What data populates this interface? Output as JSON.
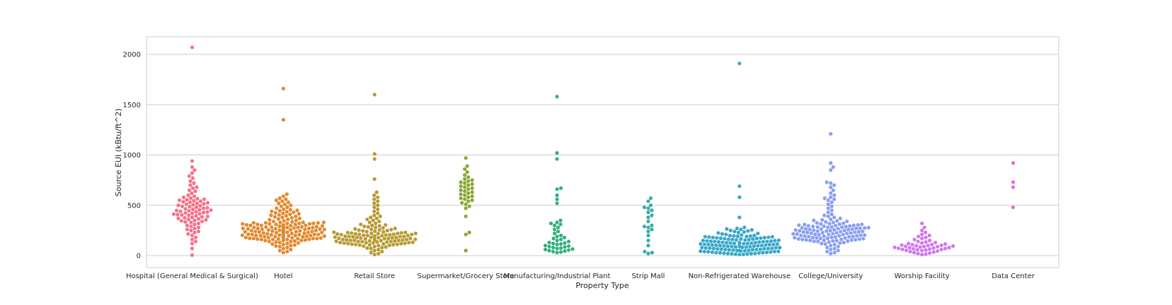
{
  "chart_data": {
    "type": "scatter",
    "subtype": "swarm",
    "title": "",
    "xlabel": "Property Type",
    "ylabel": "Source EUI (kBtu/ft^2)",
    "ylim": [
      -120,
      2180
    ],
    "yticks": [
      0,
      500,
      1000,
      1500,
      2000
    ],
    "grid": "horizontal",
    "categories": [
      "Hospital (General Medical & Surgical)",
      "Hotel",
      "Retail Store",
      "Supermarket/Grocery Store",
      "Manufacturing/Industrial Plant",
      "Strip Mall",
      "Non-Refrigerated Warehouse",
      "College/University",
      "Worship Facility",
      "Data Center"
    ],
    "colors": [
      "#f77189",
      "#e18a2f",
      "#b89b32",
      "#88a832",
      "#33b07a",
      "#36ada4",
      "#38a8c9",
      "#8a9ff0",
      "#d077ef",
      "#f564d4"
    ],
    "series": [
      {
        "name": "Hospital (General Medical & Surgical)",
        "values": [
          2070,
          940,
          880,
          850,
          820,
          790,
          770,
          740,
          720,
          700,
          680,
          670,
          650,
          640,
          620,
          600,
          590,
          580,
          570,
          565,
          560,
          555,
          550,
          545,
          540,
          535,
          530,
          525,
          520,
          515,
          510,
          505,
          500,
          495,
          490,
          485,
          480,
          475,
          470,
          465,
          460,
          455,
          452,
          448,
          445,
          440,
          436,
          432,
          428,
          424,
          420,
          416,
          412,
          408,
          404,
          400,
          395,
          390,
          385,
          380,
          375,
          370,
          365,
          360,
          355,
          350,
          345,
          340,
          335,
          330,
          320,
          310,
          300,
          290,
          280,
          270,
          260,
          250,
          240,
          230,
          215,
          200,
          180,
          160,
          140,
          120,
          70,
          5
        ]
      },
      {
        "name": "Hotel",
        "values": [
          1660,
          1350,
          610,
          590,
          570,
          560,
          550,
          540,
          530,
          520,
          510,
          500,
          490,
          480,
          470,
          460,
          455,
          450,
          445,
          440,
          435,
          430,
          425,
          420,
          415,
          410,
          405,
          400,
          395,
          390,
          385,
          380,
          375,
          370,
          365,
          360,
          355,
          350,
          345,
          340,
          335,
          330,
          330,
          330,
          325,
          325,
          325,
          320,
          320,
          320,
          315,
          315,
          315,
          310,
          310,
          310,
          305,
          305,
          305,
          300,
          300,
          300,
          298,
          296,
          294,
          292,
          290,
          290,
          290,
          288,
          286,
          284,
          282,
          280,
          280,
          280,
          278,
          276,
          274,
          272,
          270,
          270,
          270,
          268,
          266,
          264,
          262,
          260,
          260,
          260,
          258,
          256,
          254,
          252,
          250,
          250,
          250,
          248,
          246,
          244,
          242,
          240,
          240,
          240,
          238,
          236,
          234,
          232,
          230,
          230,
          230,
          228,
          226,
          224,
          222,
          220,
          220,
          220,
          218,
          216,
          214,
          212,
          210,
          210,
          210,
          208,
          206,
          204,
          202,
          200,
          200,
          200,
          198,
          196,
          194,
          192,
          190,
          190,
          190,
          188,
          186,
          184,
          182,
          180,
          180,
          180,
          178,
          176,
          174,
          172,
          170,
          170,
          170,
          168,
          166,
          164,
          162,
          160,
          160,
          160,
          155,
          150,
          150,
          150,
          145,
          140,
          140,
          135,
          130,
          125,
          120,
          115,
          110,
          105,
          100,
          95,
          90,
          80,
          70,
          60,
          50,
          40,
          30
        ]
      },
      {
        "name": "Retail Store",
        "values": [
          1600,
          1010,
          960,
          760,
          630,
          600,
          580,
          560,
          540,
          520,
          500,
          480,
          460,
          440,
          420,
          400,
          390,
          380,
          370,
          360,
          350,
          340,
          330,
          320,
          310,
          305,
          300,
          295,
          290,
          285,
          280,
          275,
          270,
          265,
          262,
          258,
          255,
          252,
          248,
          245,
          242,
          238,
          235,
          232,
          230,
          228,
          226,
          224,
          222,
          220,
          220,
          218,
          216,
          214,
          212,
          210,
          210,
          208,
          206,
          204,
          202,
          200,
          200,
          198,
          196,
          194,
          192,
          190,
          190,
          188,
          186,
          184,
          182,
          180,
          180,
          178,
          176,
          174,
          172,
          170,
          170,
          168,
          166,
          164,
          162,
          160,
          160,
          158,
          156,
          154,
          152,
          150,
          150,
          148,
          146,
          144,
          142,
          140,
          140,
          138,
          136,
          134,
          132,
          130,
          130,
          128,
          126,
          124,
          122,
          120,
          118,
          116,
          114,
          112,
          110,
          108,
          106,
          104,
          102,
          100,
          95,
          90,
          85,
          80,
          75,
          70,
          60,
          50,
          40,
          30,
          20,
          10
        ]
      },
      {
        "name": "Supermarket/Grocery Store",
        "values": [
          970,
          890,
          860,
          830,
          800,
          780,
          760,
          750,
          740,
          730,
          720,
          710,
          700,
          690,
          680,
          670,
          660,
          650,
          640,
          630,
          620,
          610,
          600,
          590,
          580,
          570,
          560,
          550,
          540,
          525,
          510,
          490,
          470,
          390,
          230,
          210,
          50
        ]
      },
      {
        "name": "Manufacturing/Industrial Plant",
        "values": [
          1580,
          1020,
          960,
          670,
          660,
          600,
          560,
          520,
          350,
          330,
          320,
          310,
          300,
          280,
          260,
          240,
          220,
          200,
          190,
          180,
          170,
          160,
          150,
          140,
          130,
          125,
          120,
          115,
          110,
          100,
          95,
          90,
          85,
          80,
          75,
          70,
          65,
          60,
          55,
          50,
          45,
          40,
          35,
          30
        ]
      },
      {
        "name": "Strip Mall",
        "values": [
          570,
          540,
          500,
          480,
          470,
          450,
          430,
          400,
          380,
          340,
          300,
          290,
          280,
          260,
          240,
          200,
          150,
          100,
          40,
          30,
          20
        ]
      },
      {
        "name": "Non-Refrigerated Warehouse",
        "values": [
          1910,
          690,
          580,
          380,
          280,
          270,
          265,
          260,
          255,
          250,
          245,
          240,
          235,
          230,
          225,
          220,
          215,
          210,
          205,
          200,
          198,
          196,
          194,
          192,
          190,
          188,
          186,
          184,
          182,
          180,
          178,
          176,
          174,
          172,
          170,
          168,
          166,
          164,
          162,
          160,
          158,
          156,
          154,
          152,
          150,
          148,
          146,
          144,
          142,
          140,
          140,
          138,
          136,
          134,
          132,
          130,
          130,
          128,
          126,
          124,
          122,
          120,
          120,
          118,
          116,
          114,
          112,
          110,
          110,
          108,
          106,
          104,
          102,
          100,
          100,
          98,
          96,
          94,
          92,
          90,
          90,
          88,
          86,
          84,
          82,
          80,
          80,
          78,
          76,
          74,
          72,
          70,
          70,
          68,
          66,
          64,
          62,
          60,
          60,
          58,
          56,
          54,
          52,
          50,
          50,
          48,
          46,
          44,
          42,
          40,
          40,
          38,
          36,
          34,
          32,
          30,
          30,
          28,
          26,
          24,
          22,
          20,
          20,
          18,
          16,
          14,
          12,
          10
        ]
      },
      {
        "name": "College/University",
        "values": [
          1210,
          920,
          880,
          850,
          730,
          720,
          700,
          680,
          650,
          620,
          600,
          580,
          570,
          560,
          550,
          530,
          510,
          490,
          470,
          450,
          430,
          410,
          400,
          390,
          380,
          370,
          360,
          355,
          350,
          345,
          340,
          335,
          330,
          325,
          322,
          318,
          315,
          312,
          310,
          308,
          305,
          302,
          300,
          298,
          296,
          294,
          292,
          290,
          288,
          286,
          284,
          282,
          280,
          278,
          276,
          274,
          272,
          270,
          268,
          266,
          264,
          262,
          260,
          258,
          256,
          254,
          252,
          250,
          248,
          246,
          244,
          242,
          240,
          238,
          236,
          234,
          232,
          230,
          228,
          226,
          224,
          222,
          220,
          218,
          216,
          214,
          212,
          210,
          208,
          206,
          204,
          202,
          200,
          198,
          196,
          194,
          192,
          190,
          188,
          186,
          184,
          182,
          180,
          178,
          176,
          174,
          172,
          170,
          168,
          166,
          164,
          162,
          160,
          158,
          156,
          154,
          152,
          150,
          148,
          146,
          144,
          142,
          140,
          135,
          130,
          125,
          120,
          115,
          110,
          100,
          90,
          80,
          70,
          60,
          50,
          40,
          30,
          20
        ]
      },
      {
        "name": "Worship Facility",
        "values": [
          320,
          280,
          250,
          230,
          210,
          200,
          190,
          180,
          170,
          160,
          150,
          140,
          135,
          130,
          125,
          120,
          115,
          110,
          108,
          105,
          102,
          100,
          98,
          95,
          92,
          90,
          88,
          85,
          82,
          80,
          78,
          75,
          72,
          70,
          68,
          65,
          62,
          60,
          58,
          55,
          52,
          50,
          45,
          40,
          35,
          30,
          25,
          20,
          15,
          10
        ]
      },
      {
        "name": "Data Center",
        "values": [
          920,
          730,
          680,
          480
        ]
      }
    ]
  }
}
